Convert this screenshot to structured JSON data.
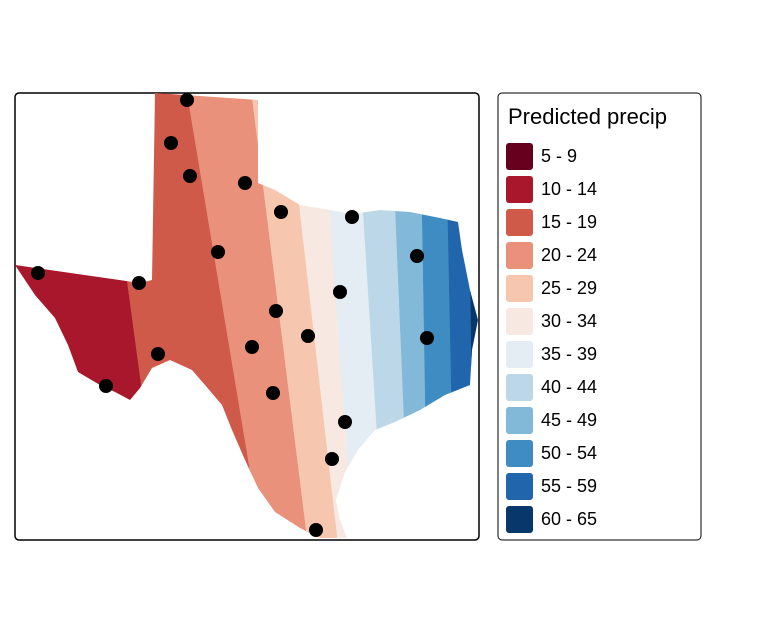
{
  "legend": {
    "title": "Predicted precip",
    "classes": [
      {
        "label": "5 - 9",
        "color": "#67001f"
      },
      {
        "label": "10 - 14",
        "color": "#a8172b"
      },
      {
        "label": "15 - 19",
        "color": "#cf5a4a"
      },
      {
        "label": "20 - 24",
        "color": "#e9917a"
      },
      {
        "label": "25 - 29",
        "color": "#f6c6ae"
      },
      {
        "label": "30 - 34",
        "color": "#f7e9e1"
      },
      {
        "label": "35 - 39",
        "color": "#e4edf3"
      },
      {
        "label": "40 - 44",
        "color": "#bcd8e8"
      },
      {
        "label": "45 - 49",
        "color": "#82b9d9"
      },
      {
        "label": "50 - 54",
        "color": "#3f8cc3"
      },
      {
        "label": "55 - 59",
        "color": "#2166ac"
      },
      {
        "label": "60 - 65",
        "color": "#08386b"
      }
    ]
  }
}
